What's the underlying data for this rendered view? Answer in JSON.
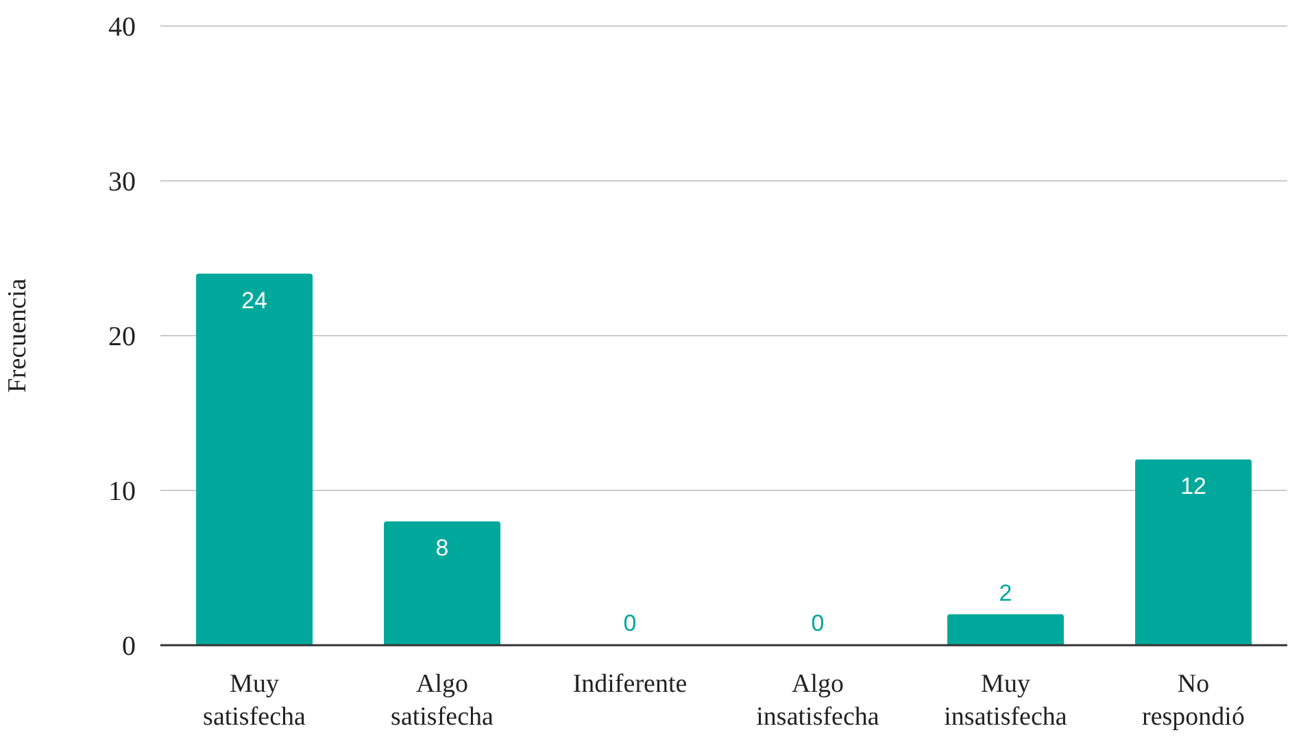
{
  "chart_data": {
    "type": "bar",
    "ylabel": "Frecuencia",
    "categories": [
      "Muy satisfecha",
      "Algo satisfecha",
      "Indiferente",
      "Algo insatisfecha",
      "Muy insatisfecha",
      "No respondió"
    ],
    "values": [
      24,
      8,
      0,
      0,
      2,
      12
    ],
    "color": "#00a89b",
    "ylim": [
      0,
      40
    ],
    "yticks": [
      0,
      10,
      20,
      30,
      40
    ],
    "grid": "y",
    "data_labels": true
  }
}
